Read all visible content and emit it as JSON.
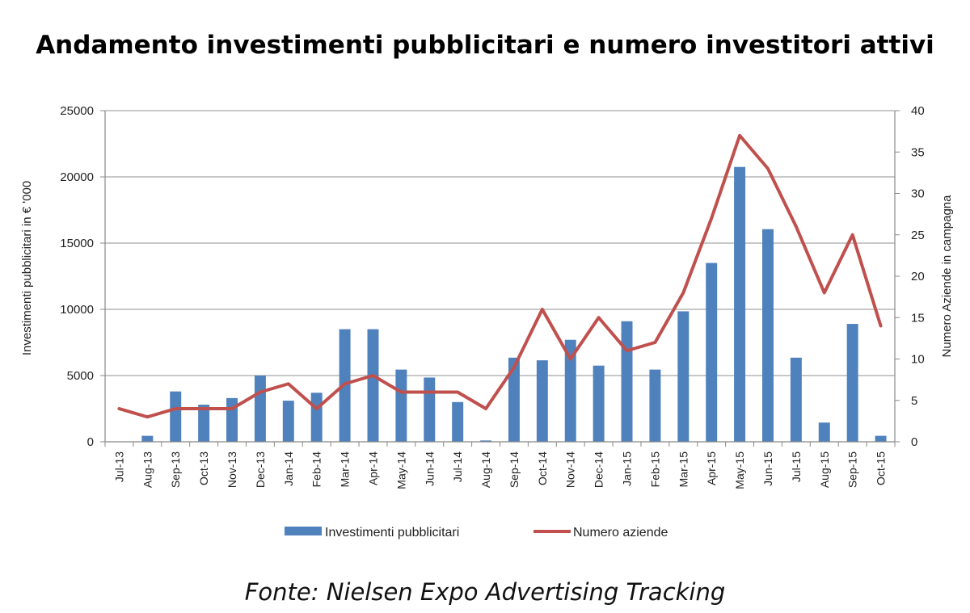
{
  "chart_data": {
    "type": "bar",
    "title": "Andamento investimenti pubblicitari e numero investitori attivi",
    "categories": [
      "Jul-13",
      "Aug-13",
      "Sep-13",
      "Oct-13",
      "Nov-13",
      "Dec-13",
      "Jan-14",
      "Feb-14",
      "Mar-14",
      "Apr-14",
      "May-14",
      "Jun-14",
      "Jul-14",
      "Aug-14",
      "Sep-14",
      "Oct-14",
      "Nov-14",
      "Dec-14",
      "Jan-15",
      "Feb-15",
      "Mar-15",
      "Apr-15",
      "May-15",
      "Jun-15",
      "Jul-15",
      "Aug-15",
      "Sep-15",
      "Oct-15"
    ],
    "series": [
      {
        "name": "Investimenti pubblicitari",
        "type": "bar",
        "axis": "left",
        "color": "#4f81bd",
        "values": [
          0,
          450,
          3800,
          2800,
          3300,
          5000,
          3100,
          3700,
          8500,
          8500,
          5450,
          4850,
          3000,
          100,
          6350,
          6150,
          7700,
          5750,
          9100,
          5450,
          9850,
          13500,
          20750,
          16050,
          6350,
          1450,
          8900,
          450
        ]
      },
      {
        "name": "Numero aziende",
        "type": "line",
        "axis": "right",
        "color": "#c0504d",
        "values": [
          4,
          3,
          4,
          4,
          4,
          6,
          7,
          4,
          7,
          8,
          6,
          6,
          6,
          4,
          9,
          16,
          10,
          15,
          11,
          12,
          18,
          27,
          37,
          33,
          26,
          18,
          25,
          14
        ]
      }
    ],
    "ylabel": "Investimenti pubblicitari in € '000",
    "y2label": "Numero  Aziende in campagna",
    "ylim": [
      0,
      25000
    ],
    "y2lim": [
      0,
      40
    ],
    "yticks": [
      0,
      5000,
      10000,
      15000,
      20000,
      25000
    ],
    "y2ticks": [
      0,
      5,
      10,
      15,
      20,
      25,
      30,
      35,
      40
    ],
    "grid": true,
    "legend": "bottom",
    "source": "Fonte: Nielsen Expo Advertising Tracking"
  }
}
